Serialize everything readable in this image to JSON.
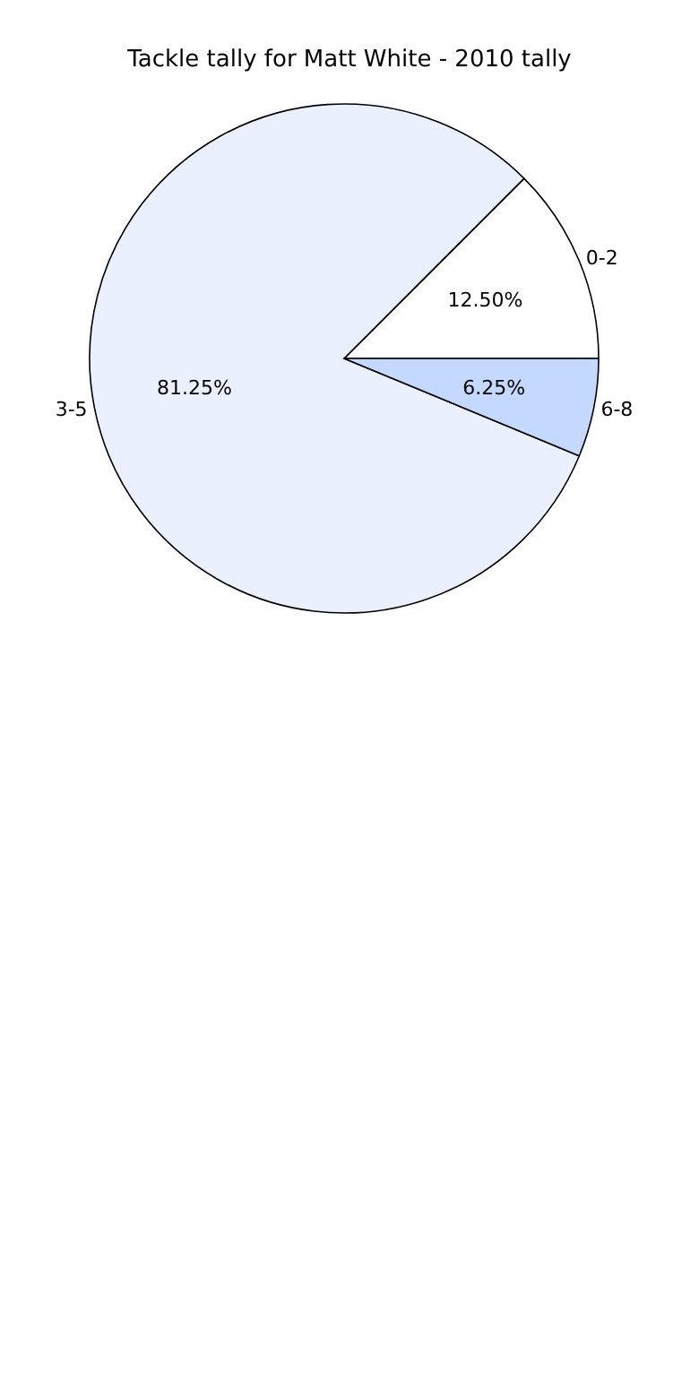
{
  "chart_data": {
    "type": "pie",
    "title": "Tackle tally for Matt White - 2010 tally",
    "categories": [
      "0-2",
      "3-5",
      "6-8"
    ],
    "values": [
      12.5,
      81.25,
      6.25
    ],
    "colors": [
      "#ffffff",
      "#eaf0fe",
      "#c5d8ff"
    ],
    "value_labels": [
      "12.50%",
      "81.25%",
      "6.25%"
    ],
    "legend": false
  }
}
